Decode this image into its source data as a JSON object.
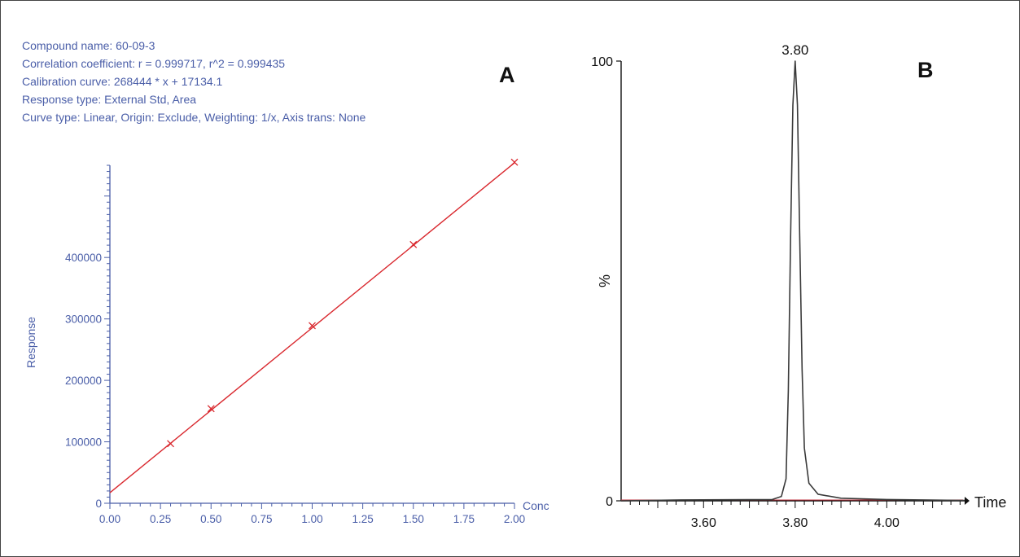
{
  "chart_data": [
    {
      "type": "scatter",
      "panel_label": "A",
      "info_lines": [
        "Compound name: 60-09-3",
        "Correlation coefficient: r = 0.999717, r^2 = 0.999435",
        "Calibration curve: 268444 * x + 17134.1",
        "Response type: External Std, Area",
        "Curve type: Linear, Origin: Exclude, Weighting: 1/x, Axis trans: None"
      ],
      "xlabel": "Conc",
      "ylabel": "Response",
      "xlim": [
        0,
        2.0
      ],
      "ylim": [
        0,
        550000
      ],
      "x_ticks": [
        "0.00",
        "0.25",
        "0.50",
        "0.75",
        "1.00",
        "1.25",
        "1.50",
        "1.75",
        "2.00"
      ],
      "y_ticks": [
        "0",
        "100000",
        "200000",
        "300000",
        "400000"
      ],
      "points": [
        {
          "x": 0.3,
          "y": 97000
        },
        {
          "x": 0.5,
          "y": 154000
        },
        {
          "x": 1.0,
          "y": 289000
        },
        {
          "x": 1.5,
          "y": 421000
        },
        {
          "x": 2.0,
          "y": 555000
        }
      ],
      "fit": {
        "slope": 268444,
        "intercept": 17134.1
      },
      "colors": {
        "axis": "#4a5ea8",
        "fit": "#d9282e",
        "marker": "#d9282e"
      }
    },
    {
      "type": "line",
      "panel_label": "B",
      "xlabel": "Time",
      "ylabel": "%",
      "xlim": [
        3.42,
        4.17
      ],
      "ylim": [
        0,
        100
      ],
      "x_ticks": [
        "3.60",
        "3.80",
        "4.00"
      ],
      "y_ticks": [
        "0",
        "100"
      ],
      "peak_label": "3.80",
      "peak": {
        "x": 3.8,
        "y": 100
      },
      "series": [
        {
          "x": [
            3.42,
            3.55,
            3.75,
            3.77,
            3.78,
            3.785,
            3.79,
            3.795,
            3.8,
            3.805,
            3.81,
            3.815,
            3.82,
            3.83,
            3.85,
            3.9,
            4.0,
            4.17
          ],
          "y": [
            0,
            0.2,
            0.3,
            1,
            5,
            25,
            60,
            90,
            100,
            90,
            60,
            30,
            12,
            4,
            1.5,
            0.6,
            0.3,
            0.1
          ]
        }
      ],
      "colors": {
        "axis": "#111111",
        "trace": "#3a3a3a",
        "baseline": "#c0303c"
      }
    }
  ]
}
